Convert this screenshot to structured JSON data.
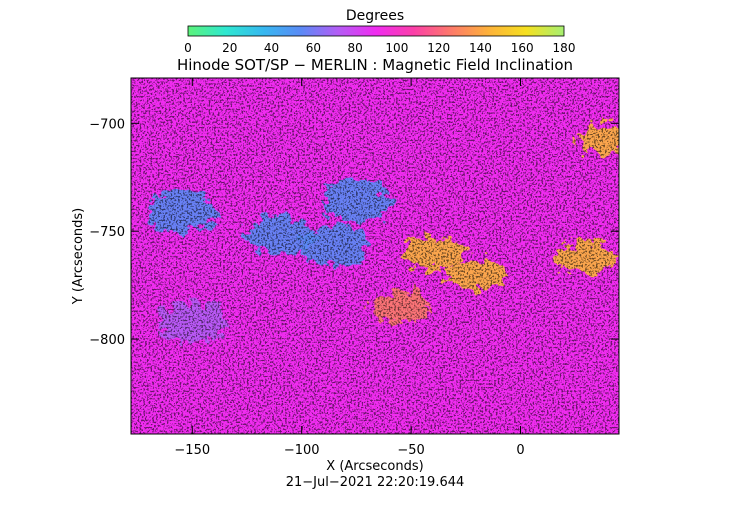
{
  "chart_data": {
    "type": "heatmap",
    "title": "Hinode SOT/SP − MERLIN : Magnetic Field Inclination",
    "xlabel": "X (Arcseconds)",
    "ylabel": "Y (Arcseconds)",
    "timestamp": "21−Jul−2021 22:20:19.644",
    "xlim": [
      -178,
      45
    ],
    "ylim": [
      -844,
      -679
    ],
    "x_ticks": [
      {
        "value": -150,
        "label": "−150"
      },
      {
        "value": -100,
        "label": "−100"
      },
      {
        "value": -50,
        "label": "−50"
      },
      {
        "value": 0,
        "label": "0"
      }
    ],
    "y_ticks": [
      {
        "value": -700,
        "label": "−700"
      },
      {
        "value": -750,
        "label": "−750"
      },
      {
        "value": -800,
        "label": "−800"
      }
    ],
    "colorbar": {
      "label": "Degrees",
      "range": [
        0,
        180
      ],
      "ticks": [
        "0",
        "20",
        "40",
        "60",
        "80",
        "100",
        "120",
        "140",
        "160",
        "180"
      ],
      "stops": [
        "#5cf27a",
        "#2ee8d0",
        "#36b8f0",
        "#5a8af5",
        "#b45cf5",
        "#f02cf0",
        "#fb3fa8",
        "#fd7a6a",
        "#fdb23a",
        "#f5e020",
        "#a6f072"
      ]
    },
    "regions": [
      {
        "description": "background inclination near 90-110 deg",
        "value": 100
      },
      {
        "x": -85,
        "y": -757,
        "value": 50
      },
      {
        "x": -110,
        "y": -752,
        "value": 55
      },
      {
        "x": -75,
        "y": -736,
        "value": 60
      },
      {
        "x": -155,
        "y": -741,
        "value": 58
      },
      {
        "x": -150,
        "y": -792,
        "value": 65
      },
      {
        "x": -40,
        "y": -760,
        "value": 140
      },
      {
        "x": -20,
        "y": -770,
        "value": 145
      },
      {
        "x": 30,
        "y": -762,
        "value": 138
      },
      {
        "x": 40,
        "y": -707,
        "value": 135
      },
      {
        "x": -55,
        "y": -785,
        "value": 130
      }
    ]
  }
}
